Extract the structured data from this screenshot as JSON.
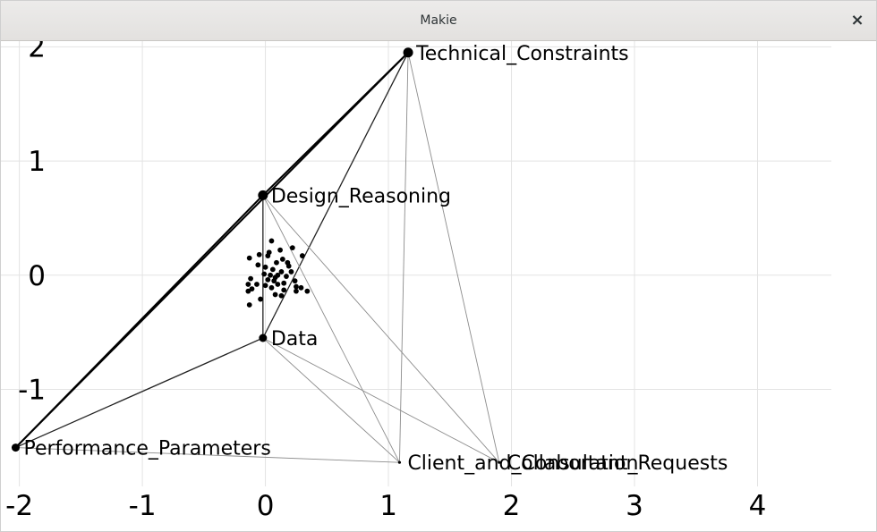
{
  "window": {
    "title": "Makie",
    "close_symbol": "×"
  },
  "chart_data": {
    "type": "scatter",
    "subtype": "network-graph",
    "title": "",
    "xlabel": "",
    "ylabel": "",
    "xlim": [
      -2.15,
      4.6
    ],
    "ylim": [
      -1.85,
      2.05
    ],
    "x_ticks": [
      -2,
      -1,
      0,
      1,
      2,
      3,
      4
    ],
    "x_tick_labels": [
      "-2",
      "-1",
      "0",
      "1",
      "2",
      "3",
      "4"
    ],
    "y_ticks": [
      -1,
      0,
      1,
      2
    ],
    "y_tick_labels": [
      "-1",
      "0",
      "1",
      "2"
    ],
    "grid": true,
    "nodes": [
      {
        "id": "TC",
        "label": "Technical_Constraints",
        "x": 1.16,
        "y": 1.95,
        "size": "large"
      },
      {
        "id": "DR",
        "label": "Design_Reasoning",
        "x": -0.02,
        "y": 0.7,
        "size": "large"
      },
      {
        "id": "D",
        "label": "Data",
        "x": -0.02,
        "y": -0.55,
        "size": "medium"
      },
      {
        "id": "PP",
        "label": "Performance_Parameters",
        "x": -2.03,
        "y": -1.51,
        "size": "medium"
      },
      {
        "id": "CC",
        "label": "Client_and_Consultant_Requests",
        "x": 1.09,
        "y": -1.64,
        "size": "small"
      },
      {
        "id": "COL",
        "label": "Collaboration",
        "x": 1.9,
        "y": -1.64,
        "size": "small"
      }
    ],
    "edges": [
      {
        "from": "PP",
        "to": "TC",
        "weight": "heavy"
      },
      {
        "from": "PP",
        "to": "DR",
        "weight": "heavy"
      },
      {
        "from": "DR",
        "to": "TC",
        "weight": "heavy"
      },
      {
        "from": "D",
        "to": "TC",
        "weight": "medium"
      },
      {
        "from": "DR",
        "to": "D",
        "weight": "medium"
      },
      {
        "from": "PP",
        "to": "D",
        "weight": "medium"
      },
      {
        "from": "TC",
        "to": "CC",
        "weight": "light"
      },
      {
        "from": "TC",
        "to": "COL",
        "weight": "light"
      },
      {
        "from": "DR",
        "to": "CC",
        "weight": "light"
      },
      {
        "from": "DR",
        "to": "COL",
        "weight": "light"
      },
      {
        "from": "D",
        "to": "CC",
        "weight": "light"
      },
      {
        "from": "D",
        "to": "COL",
        "weight": "light"
      },
      {
        "from": "PP",
        "to": "CC",
        "weight": "light"
      }
    ],
    "cluster_points": [
      [
        0.05,
        0.3
      ],
      [
        0.12,
        0.22
      ],
      [
        0.22,
        0.24
      ],
      [
        -0.05,
        0.18
      ],
      [
        0.02,
        0.17
      ],
      [
        0.14,
        0.14
      ],
      [
        0.3,
        0.17
      ],
      [
        -0.13,
        0.15
      ],
      [
        0.09,
        0.11
      ],
      [
        0.18,
        0.11
      ],
      [
        -0.06,
        0.09
      ],
      [
        0.0,
        0.07
      ],
      [
        0.06,
        0.05
      ],
      [
        0.13,
        0.03
      ],
      [
        0.21,
        0.03
      ],
      [
        -0.01,
        0.01
      ],
      [
        0.04,
        0.0
      ],
      [
        0.1,
        0.0
      ],
      [
        0.17,
        -0.01
      ],
      [
        -0.12,
        -0.03
      ],
      [
        0.02,
        -0.04
      ],
      [
        0.07,
        -0.05
      ],
      [
        0.24,
        -0.05
      ],
      [
        -0.14,
        -0.08
      ],
      [
        -0.07,
        -0.08
      ],
      [
        0.0,
        -0.09
      ],
      [
        0.1,
        -0.08
      ],
      [
        0.15,
        -0.07
      ],
      [
        -0.11,
        -0.12
      ],
      [
        0.05,
        -0.11
      ],
      [
        0.25,
        -0.1
      ],
      [
        0.29,
        -0.11
      ],
      [
        0.15,
        -0.13
      ],
      [
        0.25,
        -0.14
      ],
      [
        0.34,
        -0.14
      ],
      [
        -0.14,
        -0.14
      ],
      [
        0.08,
        -0.17
      ],
      [
        0.13,
        -0.18
      ],
      [
        -0.04,
        -0.21
      ],
      [
        -0.13,
        -0.26
      ],
      [
        0.03,
        0.2
      ],
      [
        0.19,
        0.08
      ],
      [
        0.08,
        -0.02
      ]
    ]
  }
}
